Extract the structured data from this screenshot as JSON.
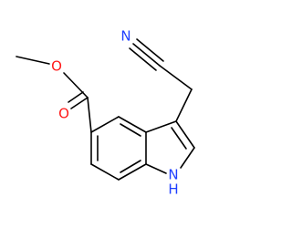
{
  "atoms": {
    "nitrile_n": "N",
    "ester_o": "O",
    "carbonyl_o": "O",
    "ring_n": "N",
    "ring_h": "H"
  }
}
